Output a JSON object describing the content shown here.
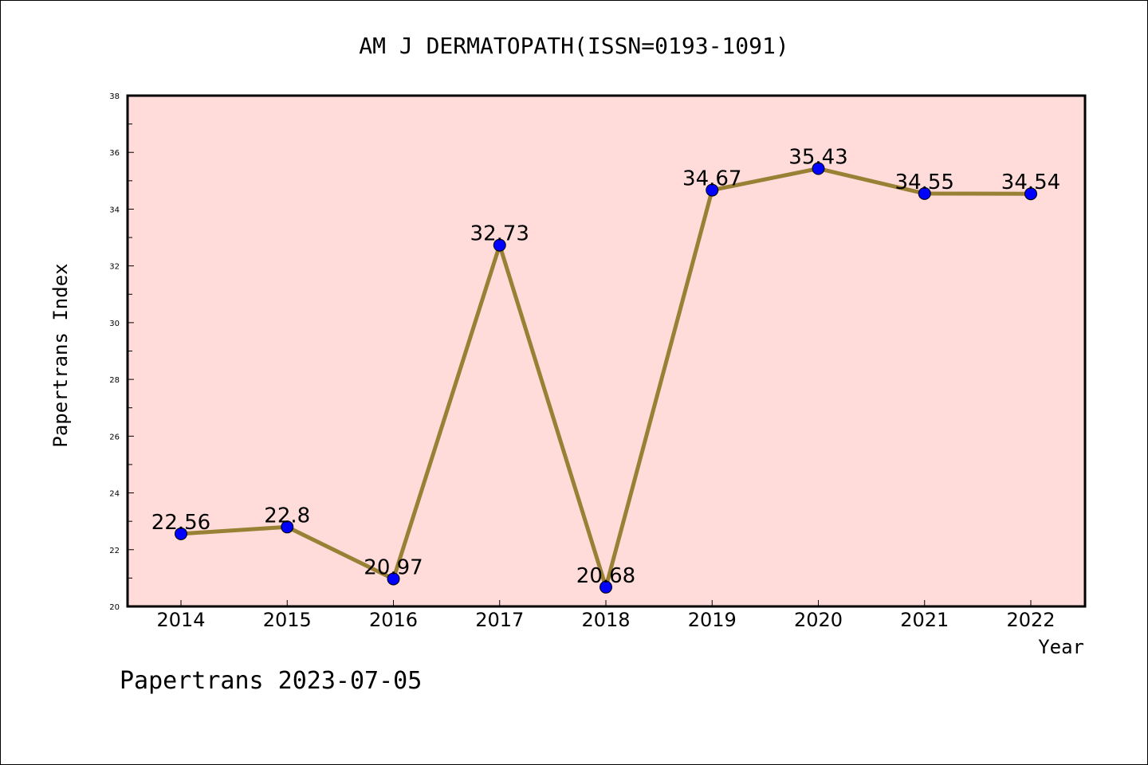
{
  "chart_data": {
    "type": "line",
    "title": "AM J DERMATOPATH(ISSN=0193-1091)",
    "xlabel": "Year",
    "ylabel": "Papertrans Index",
    "footer": "Papertrans 2023-07-05",
    "categories": [
      "2014",
      "2015",
      "2016",
      "2017",
      "2018",
      "2019",
      "2020",
      "2021",
      "2022"
    ],
    "values": [
      22.56,
      22.8,
      20.97,
      32.73,
      20.68,
      34.67,
      35.43,
      34.55,
      34.54
    ],
    "data_labels": [
      "22.56",
      "22.8",
      "20.97",
      "32.73",
      "20.68",
      "34.67",
      "35.43",
      "34.55",
      "34.54"
    ],
    "ylim": [
      20,
      38
    ],
    "yticks": [
      "20",
      "22",
      "24",
      "26",
      "28",
      "30",
      "32",
      "34",
      "36",
      "38"
    ],
    "grid": false,
    "colors": {
      "plot_background": "#ffdcda",
      "line": "#9a8035",
      "marker": "#0000ff",
      "axis": "#000000"
    }
  }
}
